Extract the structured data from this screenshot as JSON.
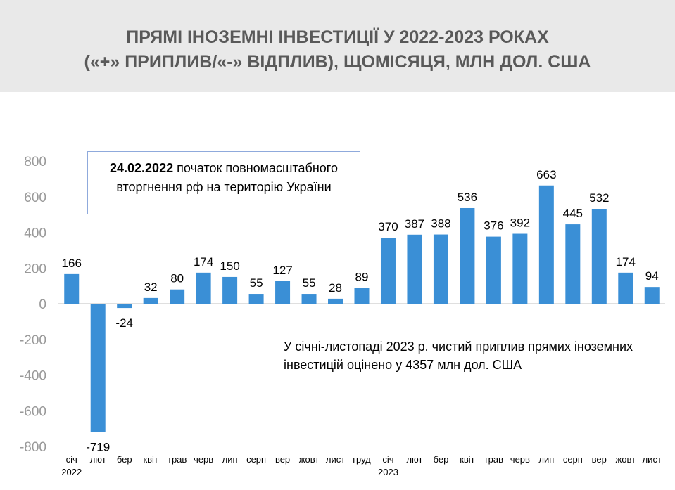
{
  "title": {
    "line1": "ПРЯМІ ІНОЗЕМНІ ІНВЕСТИЦІЇ У 2022-2023 РОКАХ",
    "line2": "(«+» ПРИПЛИВ/«-» ВІДПЛИВ), ЩОМІСЯЦЯ, МЛН ДОЛ. США"
  },
  "callout": {
    "date": "24.02.2022",
    "text": "початок повномасштабного вторгнення рф на територію України"
  },
  "note": "У січні-листопаді 2023 р. чистий приплив прямих іноземних інвестицій оцінено у 4357 млн дол. США",
  "colors": {
    "bar": "#3a8fd6",
    "header_bg": "#e9e9e9",
    "title": "#595959",
    "callout_border": "#8faadc"
  },
  "chart_data": {
    "type": "bar",
    "title": "ПРЯМІ ІНОЗЕМНІ ІНВЕСТИЦІЇ У 2022-2023 РОКАХ («+» ПРИПЛИВ/«-» ВІДПЛИВ), ЩОМІСЯЦЯ, МЛН ДОЛ. США",
    "xlabel": "",
    "ylabel": "",
    "ylim": [
      -800,
      800
    ],
    "yticks": [
      "800",
      "600",
      "400",
      "200",
      "0",
      "-200",
      "-400",
      "-600",
      "-800"
    ],
    "grid": false,
    "categories": [
      "січ",
      "лют",
      "бер",
      "квіт",
      "трав",
      "черв",
      "лип",
      "серп",
      "вер",
      "жовт",
      "лист",
      "груд",
      "січ",
      "лют",
      "бер",
      "квіт",
      "трав",
      "черв",
      "лип",
      "серп",
      "вер",
      "жовт",
      "лист"
    ],
    "year_labels": [
      {
        "index": 0,
        "text": "2022"
      },
      {
        "index": 12,
        "text": "2023"
      }
    ],
    "values": [
      166,
      -719,
      -24,
      32,
      80,
      174,
      150,
      55,
      127,
      55,
      28,
      89,
      370,
      387,
      388,
      536,
      376,
      392,
      663,
      445,
      532,
      174,
      94
    ],
    "data_labels": [
      "166",
      "-719",
      "-24",
      "32",
      "80",
      "174",
      "150",
      "55",
      "127",
      "55",
      "28",
      "89",
      "370",
      "387",
      "388",
      "536",
      "376",
      "392",
      "663",
      "445",
      "532",
      "174",
      "94"
    ]
  }
}
